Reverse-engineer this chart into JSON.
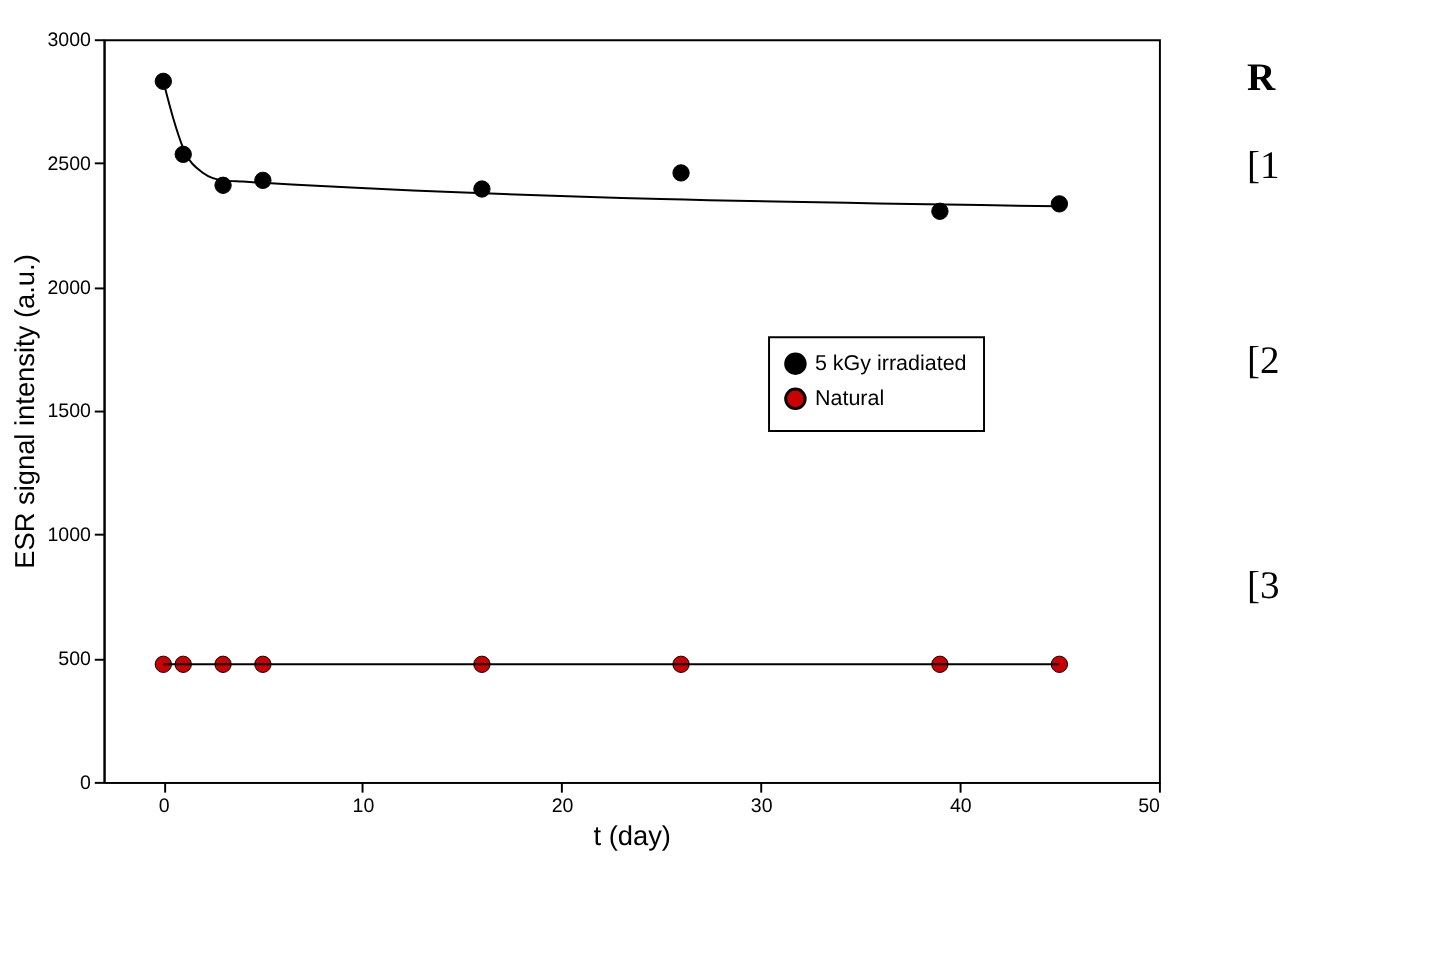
{
  "chart_data": {
    "type": "scatter",
    "xlabel": "t (day)",
    "ylabel": "ESR signal intensity (a.u.)",
    "xlim": [
      -3,
      50
    ],
    "xticks": [
      0,
      10,
      20,
      30,
      40,
      50
    ],
    "ylim": [
      0,
      3000
    ],
    "yticks": [
      0,
      500,
      1000,
      1500,
      2000,
      2500,
      3000
    ],
    "grid": false,
    "legend": "right",
    "series": [
      {
        "name": "5 kGy irradiated",
        "marker": "circle",
        "color": "#000000",
        "x": [
          0,
          1,
          3,
          5,
          16,
          26,
          39,
          45
        ],
        "values": [
          2830,
          2535,
          2410,
          2430,
          2395,
          2460,
          2305,
          2335
        ]
      },
      {
        "name": "Natural",
        "marker": "circle",
        "color": "#cc0000",
        "x": [
          0,
          1,
          3,
          5,
          16,
          26,
          39,
          45
        ],
        "values": [
          475,
          475,
          475,
          475,
          475,
          475,
          475,
          475
        ]
      },
      {
        "type": "line",
        "color": "#000000",
        "x": [
          0,
          0.5,
          1,
          2,
          3,
          4,
          5,
          45
        ],
        "values": [
          2830,
          2680,
          2560,
          2460,
          2430,
          2425,
          2420,
          2325
        ]
      },
      {
        "type": "line",
        "color": "#000000",
        "x": [
          0,
          45
        ],
        "values": [
          475,
          475
        ]
      }
    ],
    "annotations": [
      "R",
      "[1",
      "[2",
      "[3"
    ]
  }
}
